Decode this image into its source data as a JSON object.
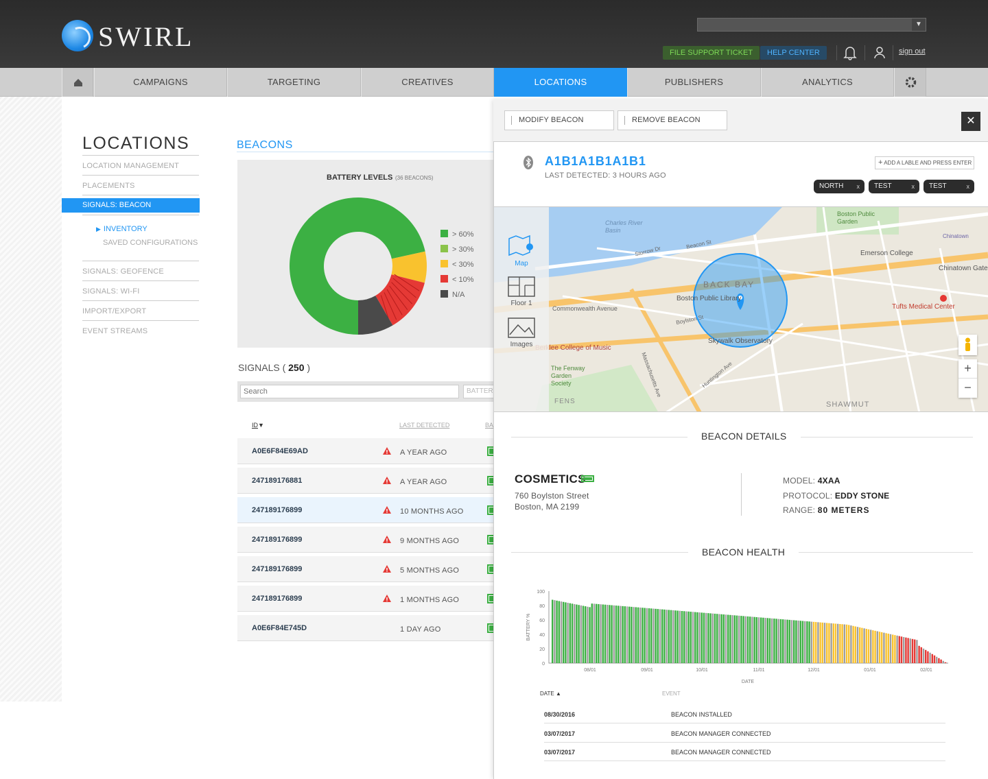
{
  "header": {
    "logo_text": "SWIRL",
    "file_support": "FILE SUPPORT TICKET",
    "help_center": "HELP CENTER",
    "sign_out": "sign out"
  },
  "nav": {
    "items": [
      "CAMPAIGNS",
      "TARGETING",
      "CREATIVES",
      "LOCATIONS",
      "PUBLISHERS",
      "ANALYTICS"
    ],
    "active": "LOCATIONS"
  },
  "sidebar": {
    "title": "LOCATIONS",
    "items": [
      "LOCATION MANAGEMENT",
      "PLACEMENTS",
      "SIGNALS: BEACON",
      "SIGNALS: GEOFENCE",
      "SIGNALS: WI-FI",
      "IMPORT/EXPORT",
      "EVENT STREAMS"
    ],
    "sub_items": [
      "INVENTORY",
      "SAVED CONFIGURATIONS"
    ]
  },
  "beacons": {
    "title": "BEACONS",
    "chart_title": "BATTERY LEVELS",
    "chart_subtitle": "(36 BEACONS)"
  },
  "signals": {
    "label": "SIGNALS (",
    "count": "250",
    "label_end": ")",
    "search_placeholder": "Search",
    "battery_placeholder": "BATTERY",
    "col_id": "ID",
    "col_last": "LAST DETECTED",
    "col_bat": "BA",
    "rows": [
      {
        "id": "A0E6F84E69AD",
        "last": "A YEAR AGO",
        "warn": true
      },
      {
        "id": "247189176881",
        "last": "A YEAR AGO",
        "warn": true
      },
      {
        "id": "247189176899",
        "last": "10 MONTHS AGO",
        "warn": true
      },
      {
        "id": "247189176899",
        "last": "9 MONTHS AGO",
        "warn": true
      },
      {
        "id": "247189176899",
        "last": "5 MONTHS AGO",
        "warn": true
      },
      {
        "id": "247189176899",
        "last": "1 MONTHS AGO",
        "warn": true
      },
      {
        "id": "A0E6F84E745D",
        "last": "1 DAY AGO",
        "warn": false
      }
    ]
  },
  "detail": {
    "modify": "MODIFY BEACON",
    "remove": "REMOVE BEACON",
    "beacon_id": "A1B1A1B1A1B1",
    "last_detected": "LAST DETECTED: 3 HOURS AGO",
    "add_label": "ADD A LABLE AND PRESS ENTER",
    "tags": [
      "NORTH",
      "TEST",
      "TEST"
    ],
    "map_tools": [
      "Map",
      "Floor 1",
      "Images"
    ],
    "map_labels": [
      "Charles River Basin",
      "Boston Public Garden",
      "Chinatown",
      "BACK BAY",
      "Boston Public Library",
      "Skywalk Observatory",
      "Emerson College",
      "Chinatown Gate",
      "Tufts Medical Center",
      "Berklee College of Music",
      "The Fenway Garden Society",
      "SHAWMUT",
      "Commonwealth Avenue",
      "Storrow Dr",
      "Massachusetts Ave",
      "Beacon St",
      "Boylston St",
      "Huntington Ave",
      "FENS"
    ],
    "details_head": "BEACON DETAILS",
    "store": "COSMETICS",
    "address1": "760 Boylston Street",
    "address2": "Boston, MA 2199",
    "model_label": "MODEL:",
    "model": "4XAA",
    "protocol_label": "PROTOCOL:",
    "protocol": "EDDY STONE",
    "range_label": "RANGE:",
    "range": "80 METERS",
    "health_head": "BEACON HEALTH",
    "events_col_date": "DATE",
    "events_col_event": "EVENT",
    "events": [
      {
        "date": "08/30/2016",
        "event": "BEACON INSTALLED"
      },
      {
        "date": "03/07/2017",
        "event": "BEACON MANAGER CONNECTED"
      },
      {
        "date": "03/07/2017",
        "event": "BEACON MANAGER CONNECTED"
      }
    ]
  },
  "colors": {
    "accent": "#2196f3",
    "green": "#3cb043",
    "yellow": "#f9c22e",
    "red": "#e53935",
    "gray": "#9e9e9e",
    "dark": "#4a4a4a"
  },
  "chart_data": [
    {
      "type": "pie",
      "title": "BATTERY LEVELS",
      "subtitle": "(36 BEACONS)",
      "categories": [
        "> 60%",
        "> 30%",
        "< 30%",
        "< 10%",
        "N/A"
      ],
      "values": [
        68,
        0,
        7,
        12,
        8
      ],
      "colors": [
        "#3cb043",
        "#8bc34a",
        "#f9c22e",
        "#e53935",
        "#4a4a4a"
      ],
      "legend": "right"
    },
    {
      "type": "bar",
      "title": "",
      "xlabel": "DATE",
      "ylabel": "BATTERY %",
      "ylim": [
        0,
        100
      ],
      "yticks": [
        0,
        20,
        40,
        60,
        80,
        100
      ],
      "xticks": [
        "08/01",
        "09/01",
        "10/01",
        "11/01",
        "12/01",
        "01/01",
        "02/01"
      ],
      "start_value": 88,
      "end_value": 1,
      "bar_count": 180,
      "color_segments": [
        {
          "color": "green",
          "until_percent": 66
        },
        {
          "color": "yellow",
          "until_percent": 88
        },
        {
          "color": "red",
          "until_percent": 100
        }
      ]
    }
  ]
}
